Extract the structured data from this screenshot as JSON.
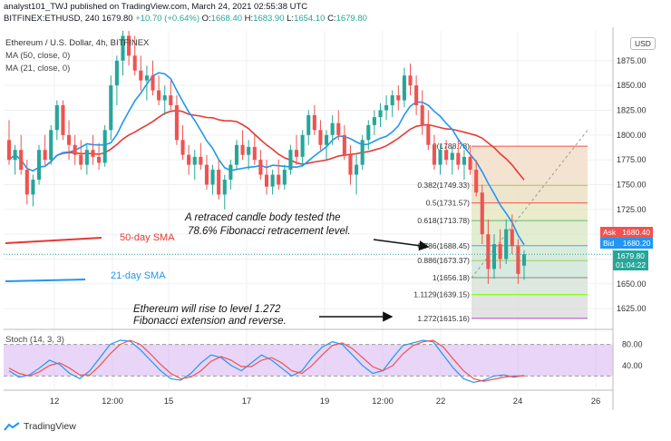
{
  "header": {
    "line1": "analyst101_TWJ published on TradingView.com, March 24, 2021 02:55:38 UTC",
    "symbol": "BITFINEX:ETHUSD, 240",
    "last": "1679.80",
    "change": "+10.70 (+0.64%)",
    "ohlc": {
      "o_label": "O:",
      "o": "1668.40",
      "h_label": "H:",
      "h": "1683.90",
      "l_label": "L:",
      "l": "1654.10",
      "c_label": "C:",
      "c": "1679.80"
    },
    "legend_title": "Ethereum / U.S. Dollar, 4h, BITFINEX",
    "ma50_label": "MA (50, close, 0)",
    "ma21_label": "MA (21, close, 0)"
  },
  "currency_button": "USD",
  "price_tags": {
    "ask_label": "Ask",
    "ask": "1680.40",
    "bid_label": "Bid",
    "bid": "1680.20",
    "last": "1679.80",
    "timer": "01:04:22"
  },
  "annotations": {
    "fib_note_l1": "A retraced candle body tested the",
    "fib_note_l2": "78.6% Fibonacci retracement level.",
    "ext_note_l1": "Ethereum will rise to level 1.272",
    "ext_note_l2": "Fibonacci extension and reverse.",
    "sma50": "50-day SMA",
    "sma21": "21-day SMA"
  },
  "stoch_label": "Stoch (14, 3, 3)",
  "brand": "TradingView",
  "colors": {
    "up": "#26a69a",
    "down": "#ef5350",
    "ma50": "#e53935",
    "ma21": "#2196f3",
    "stoch_k": "#2196f3",
    "stoch_d": "#ef5350",
    "stoch_band": "#d6b3f0"
  },
  "chart_data": [
    {
      "type": "candlestick",
      "title": "Ethereum / U.S. Dollar, 4h, BITFINEX",
      "x_ticks": [
        "12",
        "12:00",
        "15",
        "17",
        "19",
        "12:00",
        "22",
        "24",
        "26"
      ],
      "y_ticks": [
        1625,
        1650,
        1675,
        1700,
        1725,
        1750,
        1775,
        1800,
        1825,
        1850,
        1875
      ],
      "ylim": [
        1605,
        1905
      ],
      "candles": [
        {
          "o": 1795,
          "h": 1815,
          "l": 1770,
          "c": 1775
        },
        {
          "o": 1775,
          "h": 1790,
          "l": 1760,
          "c": 1785
        },
        {
          "o": 1785,
          "h": 1800,
          "l": 1760,
          "c": 1765
        },
        {
          "o": 1765,
          "h": 1775,
          "l": 1730,
          "c": 1740
        },
        {
          "o": 1740,
          "h": 1760,
          "l": 1728,
          "c": 1755
        },
        {
          "o": 1755,
          "h": 1790,
          "l": 1750,
          "c": 1785
        },
        {
          "o": 1785,
          "h": 1800,
          "l": 1770,
          "c": 1775
        },
        {
          "o": 1775,
          "h": 1810,
          "l": 1770,
          "c": 1805
        },
        {
          "o": 1805,
          "h": 1835,
          "l": 1795,
          "c": 1830
        },
        {
          "o": 1830,
          "h": 1835,
          "l": 1795,
          "c": 1800
        },
        {
          "o": 1800,
          "h": 1815,
          "l": 1775,
          "c": 1790
        },
        {
          "o": 1790,
          "h": 1800,
          "l": 1770,
          "c": 1780
        },
        {
          "o": 1780,
          "h": 1795,
          "l": 1765,
          "c": 1770
        },
        {
          "o": 1770,
          "h": 1790,
          "l": 1760,
          "c": 1785
        },
        {
          "o": 1785,
          "h": 1800,
          "l": 1770,
          "c": 1778
        },
        {
          "o": 1778,
          "h": 1792,
          "l": 1765,
          "c": 1772
        },
        {
          "o": 1772,
          "h": 1810,
          "l": 1768,
          "c": 1805
        },
        {
          "o": 1805,
          "h": 1860,
          "l": 1795,
          "c": 1850
        },
        {
          "o": 1850,
          "h": 1880,
          "l": 1830,
          "c": 1875
        },
        {
          "o": 1875,
          "h": 1905,
          "l": 1860,
          "c": 1900
        },
        {
          "o": 1900,
          "h": 1905,
          "l": 1870,
          "c": 1880
        },
        {
          "o": 1880,
          "h": 1900,
          "l": 1860,
          "c": 1865
        },
        {
          "o": 1865,
          "h": 1880,
          "l": 1845,
          "c": 1855
        },
        {
          "o": 1855,
          "h": 1870,
          "l": 1835,
          "c": 1860
        },
        {
          "o": 1860,
          "h": 1875,
          "l": 1840,
          "c": 1845
        },
        {
          "o": 1845,
          "h": 1860,
          "l": 1830,
          "c": 1835
        },
        {
          "o": 1835,
          "h": 1850,
          "l": 1820,
          "c": 1840
        },
        {
          "o": 1840,
          "h": 1855,
          "l": 1825,
          "c": 1830
        },
        {
          "o": 1830,
          "h": 1840,
          "l": 1790,
          "c": 1795
        },
        {
          "o": 1795,
          "h": 1810,
          "l": 1775,
          "c": 1780
        },
        {
          "o": 1780,
          "h": 1790,
          "l": 1760,
          "c": 1770
        },
        {
          "o": 1770,
          "h": 1785,
          "l": 1755,
          "c": 1778
        },
        {
          "o": 1778,
          "h": 1792,
          "l": 1765,
          "c": 1770
        },
        {
          "o": 1770,
          "h": 1780,
          "l": 1745,
          "c": 1750
        },
        {
          "o": 1750,
          "h": 1770,
          "l": 1740,
          "c": 1765
        },
        {
          "o": 1765,
          "h": 1775,
          "l": 1735,
          "c": 1740
        },
        {
          "o": 1740,
          "h": 1760,
          "l": 1725,
          "c": 1755
        },
        {
          "o": 1755,
          "h": 1775,
          "l": 1745,
          "c": 1770
        },
        {
          "o": 1770,
          "h": 1795,
          "l": 1765,
          "c": 1790
        },
        {
          "o": 1790,
          "h": 1805,
          "l": 1775,
          "c": 1780
        },
        {
          "o": 1780,
          "h": 1795,
          "l": 1765,
          "c": 1788
        },
        {
          "o": 1788,
          "h": 1800,
          "l": 1770,
          "c": 1775
        },
        {
          "o": 1775,
          "h": 1785,
          "l": 1755,
          "c": 1760
        },
        {
          "o": 1760,
          "h": 1775,
          "l": 1740,
          "c": 1748
        },
        {
          "o": 1748,
          "h": 1765,
          "l": 1740,
          "c": 1760
        },
        {
          "o": 1760,
          "h": 1775,
          "l": 1745,
          "c": 1750
        },
        {
          "o": 1750,
          "h": 1770,
          "l": 1745,
          "c": 1765
        },
        {
          "o": 1765,
          "h": 1790,
          "l": 1760,
          "c": 1785
        },
        {
          "o": 1785,
          "h": 1800,
          "l": 1770,
          "c": 1778
        },
        {
          "o": 1778,
          "h": 1805,
          "l": 1770,
          "c": 1800
        },
        {
          "o": 1800,
          "h": 1825,
          "l": 1790,
          "c": 1820
        },
        {
          "o": 1820,
          "h": 1830,
          "l": 1800,
          "c": 1805
        },
        {
          "o": 1805,
          "h": 1815,
          "l": 1785,
          "c": 1790
        },
        {
          "o": 1790,
          "h": 1805,
          "l": 1775,
          "c": 1800
        },
        {
          "o": 1800,
          "h": 1820,
          "l": 1790,
          "c": 1812
        },
        {
          "o": 1812,
          "h": 1825,
          "l": 1795,
          "c": 1800
        },
        {
          "o": 1800,
          "h": 1810,
          "l": 1775,
          "c": 1780
        },
        {
          "o": 1780,
          "h": 1790,
          "l": 1750,
          "c": 1760
        },
        {
          "o": 1760,
          "h": 1780,
          "l": 1740,
          "c": 1770
        },
        {
          "o": 1770,
          "h": 1800,
          "l": 1765,
          "c": 1795
        },
        {
          "o": 1795,
          "h": 1815,
          "l": 1785,
          "c": 1810
        },
        {
          "o": 1810,
          "h": 1825,
          "l": 1800,
          "c": 1818
        },
        {
          "o": 1818,
          "h": 1832,
          "l": 1808,
          "c": 1825
        },
        {
          "o": 1825,
          "h": 1840,
          "l": 1815,
          "c": 1830
        },
        {
          "o": 1830,
          "h": 1845,
          "l": 1818,
          "c": 1840
        },
        {
          "o": 1840,
          "h": 1850,
          "l": 1825,
          "c": 1835
        },
        {
          "o": 1835,
          "h": 1868,
          "l": 1828,
          "c": 1860
        },
        {
          "o": 1860,
          "h": 1872,
          "l": 1840,
          "c": 1850
        },
        {
          "o": 1850,
          "h": 1860,
          "l": 1820,
          "c": 1830
        },
        {
          "o": 1830,
          "h": 1845,
          "l": 1800,
          "c": 1810
        },
        {
          "o": 1810,
          "h": 1825,
          "l": 1785,
          "c": 1790
        },
        {
          "o": 1790,
          "h": 1800,
          "l": 1765,
          "c": 1770
        },
        {
          "o": 1770,
          "h": 1790,
          "l": 1760,
          "c": 1785
        },
        {
          "o": 1785,
          "h": 1795,
          "l": 1770,
          "c": 1775
        },
        {
          "o": 1775,
          "h": 1788,
          "l": 1760,
          "c": 1782
        },
        {
          "o": 1782,
          "h": 1795,
          "l": 1765,
          "c": 1770
        },
        {
          "o": 1770,
          "h": 1785,
          "l": 1755,
          "c": 1778
        },
        {
          "o": 1778,
          "h": 1790,
          "l": 1760,
          "c": 1765
        },
        {
          "o": 1765,
          "h": 1775,
          "l": 1738,
          "c": 1742
        },
        {
          "o": 1742,
          "h": 1750,
          "l": 1690,
          "c": 1700
        },
        {
          "o": 1700,
          "h": 1715,
          "l": 1650,
          "c": 1665
        },
        {
          "o": 1665,
          "h": 1700,
          "l": 1655,
          "c": 1690
        },
        {
          "o": 1690,
          "h": 1705,
          "l": 1665,
          "c": 1675
        },
        {
          "o": 1675,
          "h": 1715,
          "l": 1670,
          "c": 1705
        },
        {
          "o": 1705,
          "h": 1720,
          "l": 1680,
          "c": 1688
        },
        {
          "o": 1688,
          "h": 1695,
          "l": 1650,
          "c": 1660
        },
        {
          "o": 1668.4,
          "h": 1683.9,
          "l": 1654.1,
          "c": 1679.8
        }
      ],
      "indicators": [
        {
          "name": "MA (50, close, 0)",
          "note": "50-day SMA"
        },
        {
          "name": "MA (21, close, 0)",
          "note": "21-day SMA"
        }
      ],
      "fibonacci": [
        {
          "level": "0",
          "price": 1788.78
        },
        {
          "level": "0.382",
          "price": 1749.33
        },
        {
          "level": "0.5",
          "price": 1731.57
        },
        {
          "level": "0.618",
          "price": 1713.78
        },
        {
          "level": "0.786",
          "price": 1688.45
        },
        {
          "level": "0.886",
          "price": 1673.37
        },
        {
          "level": "1",
          "price": 1656.18
        },
        {
          "level": "1.1129",
          "price": 1639.15
        },
        {
          "level": "1.272",
          "price": 1615.16
        }
      ]
    },
    {
      "type": "line",
      "title": "Stoch (14, 3, 3)",
      "y_ticks": [
        40,
        80
      ],
      "bands": [
        20,
        80
      ],
      "series": [
        {
          "name": "%K",
          "values": [
            30,
            18,
            22,
            35,
            50,
            42,
            25,
            15,
            30,
            55,
            80,
            88,
            86,
            70,
            50,
            30,
            15,
            12,
            25,
            45,
            60,
            55,
            40,
            30,
            45,
            60,
            50,
            35,
            20,
            30,
            55,
            75,
            85,
            80,
            60,
            40,
            25,
            30,
            55,
            78,
            83,
            88,
            85,
            60,
            35,
            15,
            8,
            12,
            20,
            22,
            18,
            21
          ]
        },
        {
          "name": "%D",
          "values": [
            35,
            25,
            20,
            28,
            40,
            45,
            35,
            22,
            22,
            40,
            62,
            80,
            88,
            80,
            62,
            42,
            25,
            15,
            18,
            30,
            48,
            57,
            50,
            38,
            38,
            50,
            55,
            45,
            30,
            25,
            40,
            60,
            78,
            83,
            72,
            55,
            38,
            30,
            40,
            62,
            78,
            85,
            88,
            75,
            52,
            30,
            15,
            10,
            14,
            18,
            20,
            20
          ]
        }
      ]
    }
  ]
}
